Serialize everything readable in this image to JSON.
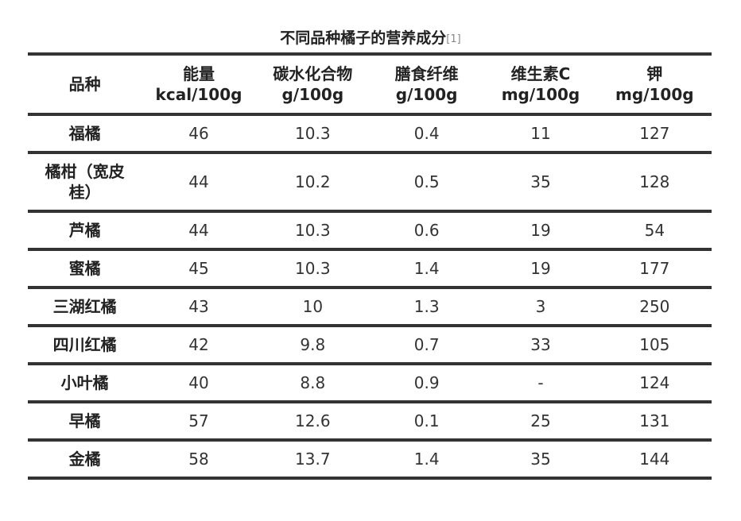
{
  "caption": {
    "title": "不同品种橘子的营养成分",
    "reference": "[1]"
  },
  "table": {
    "headers": [
      {
        "name": "品种"
      },
      {
        "name": "能量",
        "unit": "kcal/100g"
      },
      {
        "name": "碳水化合物",
        "unit": "g/100g"
      },
      {
        "name": "膳食纤维",
        "unit": "g/100g"
      },
      {
        "name": "维生素C",
        "unit": "mg/100g"
      },
      {
        "name": "钾",
        "unit": "mg/100g"
      }
    ],
    "rows": [
      [
        "福橘",
        "46",
        "10.3",
        "0.4",
        "11",
        "127"
      ],
      [
        "橘柑（宽皮桂）",
        "44",
        "10.2",
        "0.5",
        "35",
        "128"
      ],
      [
        "芦橘",
        "44",
        "10.3",
        "0.6",
        "19",
        "54"
      ],
      [
        "蜜橘",
        "45",
        "10.3",
        "1.4",
        "19",
        "177"
      ],
      [
        "三湖红橘",
        "43",
        "10",
        "1.3",
        "3",
        "250"
      ],
      [
        "四川红橘",
        "42",
        "9.8",
        "0.7",
        "33",
        "105"
      ],
      [
        "小叶橘",
        "40",
        "8.8",
        "0.9",
        "-",
        "124"
      ],
      [
        "早橘",
        "57",
        "12.6",
        "0.1",
        "25",
        "131"
      ],
      [
        "金橘",
        "58",
        "13.7",
        "1.4",
        "35",
        "144"
      ]
    ]
  }
}
